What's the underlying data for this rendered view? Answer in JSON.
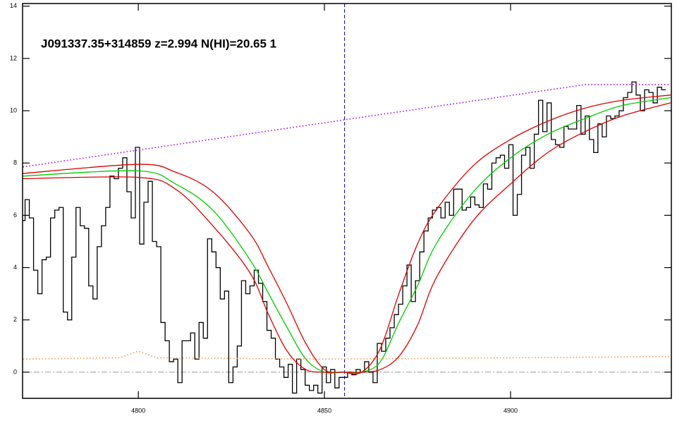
{
  "chart_data": {
    "type": "line",
    "title": "J091337.35+314859 z=2.994 N(HI)=20.65 1",
    "xlim": [
      4768.9,
      4943.2
    ],
    "ylim": [
      -1,
      14.1
    ],
    "xticks": [
      4800,
      4850,
      4900
    ],
    "yticks": [
      0,
      2,
      4,
      6,
      8,
      10,
      12,
      14
    ],
    "zero_line": {
      "y": 0,
      "color": "#999999"
    },
    "vline": {
      "x": 4855.4,
      "color": "#0000cc"
    },
    "series": [
      {
        "color": "#000000",
        "style": "step",
        "x": [
          4769,
          4770.14,
          4771.28,
          4772.42,
          4773.56,
          4774.7,
          4775.84,
          4776.98,
          4778.12,
          4779.26,
          4780.4,
          4781.54,
          4782.68,
          4783.82,
          4784.96,
          4786.1,
          4787.24,
          4788.38,
          4789.52,
          4790.66,
          4791.8,
          4792.94,
          4794.08,
          4795.22,
          4796.36,
          4797.5,
          4798.64,
          4799.78,
          4800.92,
          4802.06,
          4803.2,
          4804.34,
          4805.48,
          4806.62,
          4807.76,
          4808.9,
          4810.04,
          4811.18,
          4812.32,
          4813.46,
          4814.6,
          4815.74,
          4816.88,
          4818.02,
          4819.16,
          4820.3,
          4821.44,
          4822.58,
          4823.72,
          4824.86,
          4826,
          4827.14,
          4828.28,
          4829.42,
          4830.56,
          4831.7,
          4832.84,
          4833.98,
          4835.12,
          4836.26,
          4837.4,
          4838.54,
          4839.68,
          4840.82,
          4841.96,
          4843.1,
          4844.24,
          4845.38,
          4846.52,
          4847.66,
          4848.8,
          4849.94,
          4851.08,
          4852.22,
          4853.36,
          4854.5,
          4855.64,
          4856.78,
          4857.92,
          4859.06,
          4860.2,
          4861.34,
          4862.48,
          4863.62,
          4864.76,
          4865.9,
          4867.04,
          4868.18,
          4869.32,
          4870.46,
          4871.6,
          4872.74,
          4873.88,
          4875.02,
          4876.16,
          4877.3,
          4878.44,
          4879.58,
          4880.72,
          4881.86,
          4883,
          4884.14,
          4885.28,
          4886.42,
          4887.56,
          4888.7,
          4889.84,
          4890.98,
          4892.12,
          4893.26,
          4894.4,
          4895.54,
          4896.68,
          4897.82,
          4898.96,
          4900.1,
          4901.24,
          4902.38,
          4903.52,
          4904.66,
          4905.8,
          4906.94,
          4908.08,
          4909.22,
          4910.36,
          4911.5,
          4912.64,
          4913.78,
          4914.92,
          4916.06,
          4917.2,
          4918.34,
          4919.48,
          4920.62,
          4921.76,
          4922.9,
          4924.04,
          4925.18,
          4926.32,
          4927.46,
          4928.6,
          4929.74,
          4930.88,
          4932.02,
          4933.16,
          4934.3,
          4935.44,
          4936.58,
          4937.72,
          4938.86,
          4940,
          4941.14
        ],
        "values": [
          5.8,
          6.6,
          5.9,
          3.9,
          3.0,
          4.3,
          4.4,
          5.9,
          6.2,
          6.3,
          2.3,
          2.0,
          4.4,
          6.3,
          5.6,
          5.5,
          3.3,
          2.8,
          4.8,
          5.6,
          6.3,
          7.5,
          7.4,
          7.8,
          8.2,
          6.9,
          5.9,
          8.6,
          4.9,
          6.5,
          7.3,
          5.0,
          4.8,
          1.9,
          1.2,
          0.4,
          0.5,
          -0.4,
          1.2,
          1.2,
          1.5,
          0.5,
          1.9,
          1.3,
          5.1,
          4.6,
          4.0,
          2.8,
          3.1,
          -0.4,
          0.2,
          1.0,
          3.5,
          3.0,
          3.3,
          3.9,
          3.4,
          2.7,
          1.6,
          1.3,
          0.5,
          0.2,
          -0.2,
          0.3,
          -0.8,
          0.5,
          0.1,
          -0.5,
          -0.7,
          -0.5,
          -0.8,
          0.2,
          -0.4,
          0.1,
          -0.6,
          -0.2,
          -0.2,
          0.0,
          -0.1,
          0.1,
          0.0,
          0.4,
          0.0,
          -0.4,
          1.1,
          0.8,
          1.3,
          1.7,
          2.2,
          2.6,
          3.3,
          4.1,
          2.7,
          3.5,
          4.6,
          5.4,
          5.9,
          6.2,
          6.3,
          5.9,
          6.5,
          6.0,
          7.0,
          7.0,
          6.2,
          6.3,
          6.7,
          6.4,
          6.3,
          7.2,
          7.0,
          8.0,
          8.2,
          8.3,
          7.8,
          8.7,
          6.0,
          6.8,
          8.3,
          8.6,
          7.8,
          9.1,
          10.4,
          9.2,
          10.3,
          8.9,
          8.7,
          8.6,
          9.4,
          9.3,
          9.3,
          10.2,
          9.1,
          9.8,
          8.9,
          8.4,
          9.5,
          9.0,
          9.8,
          9.7,
          9.8,
          10.0,
          10.5,
          10.7,
          11.1,
          10.6,
          10.0,
          10.8,
          10.7,
          10.3,
          10.9,
          10.8
        ]
      },
      {
        "color": "#dd0000",
        "style": "smooth",
        "x": [
          4769,
          4800,
          4810,
          4820,
          4830,
          4835,
          4840,
          4845,
          4850,
          4855,
          4860,
          4865,
          4870,
          4875,
          4880,
          4890,
          4900,
          4910,
          4920,
          4930,
          4943
        ],
        "values": [
          7.6,
          7.95,
          7.65,
          6.9,
          5.3,
          4.0,
          2.6,
          1.1,
          0.1,
          0.0,
          0.0,
          0.9,
          3.0,
          4.9,
          6.2,
          7.9,
          8.9,
          9.6,
          10.1,
          10.4,
          10.6
        ]
      },
      {
        "color": "#00cc00",
        "style": "smooth",
        "x": [
          4769,
          4800,
          4810,
          4820,
          4830,
          4835,
          4840,
          4845,
          4850,
          4855,
          4860,
          4865,
          4870,
          4875,
          4880,
          4890,
          4900,
          4910,
          4920,
          4930,
          4943
        ],
        "values": [
          7.5,
          7.7,
          7.2,
          6.2,
          4.3,
          3.0,
          1.7,
          0.5,
          0.0,
          0.0,
          0.0,
          0.4,
          1.9,
          3.3,
          4.9,
          6.9,
          8.2,
          9.1,
          9.7,
          10.2,
          10.5
        ]
      },
      {
        "color": "#dd0000",
        "style": "smooth",
        "x": [
          4769,
          4800,
          4810,
          4820,
          4830,
          4835,
          4840,
          4845,
          4850,
          4855,
          4860,
          4865,
          4870,
          4875,
          4880,
          4890,
          4900,
          4910,
          4920,
          4930,
          4943
        ],
        "values": [
          7.4,
          7.45,
          7.0,
          5.6,
          3.8,
          2.2,
          0.8,
          0.1,
          0.0,
          0.0,
          0.0,
          0.1,
          0.6,
          1.8,
          3.6,
          5.8,
          7.2,
          8.4,
          9.2,
          9.8,
          10.3
        ]
      },
      {
        "color": "#aa00ee",
        "style": "dotted",
        "x": [
          4769,
          4920,
          4943
        ],
        "values": [
          7.85,
          11.0,
          11.0
        ]
      },
      {
        "color": "#ee9955",
        "style": "dotted",
        "x": [
          4769,
          4795,
          4800,
          4805,
          4850,
          4900,
          4943
        ],
        "values": [
          0.5,
          0.55,
          0.8,
          0.55,
          0.5,
          0.55,
          0.6
        ]
      }
    ]
  }
}
